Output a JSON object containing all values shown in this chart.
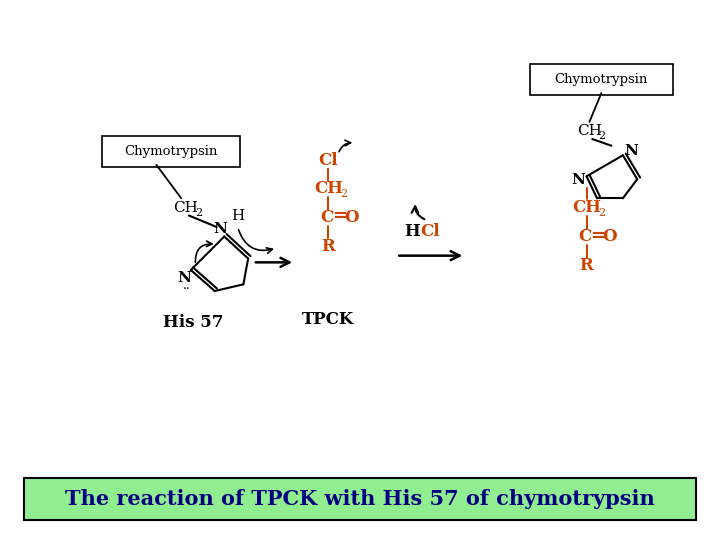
{
  "title": "The reaction of TPCK with His 57 of chymotrypsin",
  "title_color": "#000080",
  "title_bg": "#90EE90",
  "title_fontsize": 15,
  "bg_color": "#FFFFFF",
  "black": "#000000",
  "orange": "#CC4400",
  "label_his57": "His 57",
  "label_tpck": "TPCK",
  "label_chymo1": "Chymotrypsin",
  "label_chymo2": "Chymotrypsin"
}
